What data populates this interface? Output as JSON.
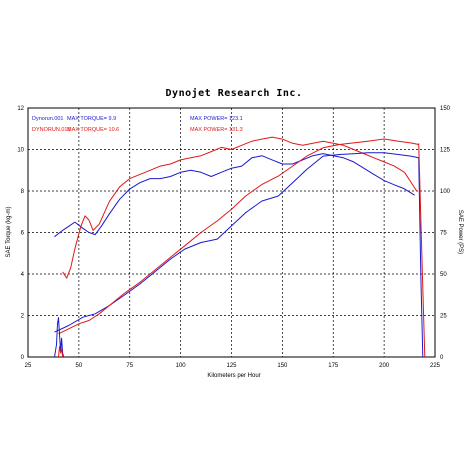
{
  "chart_data": {
    "type": "line",
    "title": "Dynojet  Research  Inc.",
    "xlabel": "Kilometers per Hour",
    "ylabel_left": "SAE Torque (kg-m)",
    "ylabel_right": "SAE Power (PS)",
    "xlim": [
      25,
      225
    ],
    "ylim_left": [
      0,
      12
    ],
    "ylim_right": [
      0,
      150
    ],
    "x_ticks": [
      "25",
      "50",
      "75",
      "100",
      "125",
      "150",
      "175",
      "200",
      "225"
    ],
    "y_left_ticks": [
      "0",
      "2",
      "4",
      "6",
      "8",
      "10",
      "12"
    ],
    "y_right_ticks": [
      "0",
      "25",
      "50",
      "75",
      "100",
      "125",
      "150"
    ],
    "grid": true,
    "legend": [
      {
        "run": "Dynorun.001",
        "torque": "MAX TORQUE= 9.9",
        "power": "MAX POWER= 123.1",
        "color": "#1a1ad0"
      },
      {
        "run": "DYNORUN.015",
        "torque": "MAX TORQUE= 10.6",
        "power": "MAX POWER= 131.3",
        "color": "#e01818"
      }
    ],
    "series": [
      {
        "key": "blue_torque",
        "run": "Dynorun.001",
        "measure": "torque",
        "axis": "left",
        "color": "#1a1ad0",
        "x": [
          38,
          42,
          45,
          48,
          52,
          55,
          58,
          61,
          65,
          70,
          75,
          80,
          85,
          90,
          95,
          100,
          105,
          110,
          115,
          120,
          125,
          130,
          135,
          140,
          145,
          150,
          155,
          160,
          165,
          170,
          175,
          180,
          185,
          190,
          195,
          200,
          205,
          210,
          215
        ],
        "y": [
          5.8,
          6.1,
          6.3,
          6.5,
          6.2,
          6.0,
          5.9,
          6.3,
          6.9,
          7.6,
          8.1,
          8.4,
          8.6,
          8.6,
          8.7,
          8.9,
          9.0,
          8.9,
          8.7,
          8.9,
          9.1,
          9.2,
          9.6,
          9.7,
          9.5,
          9.3,
          9.3,
          9.5,
          9.7,
          9.8,
          9.7,
          9.6,
          9.4,
          9.1,
          8.8,
          8.5,
          8.3,
          8.1,
          7.8
        ]
      },
      {
        "key": "red_torque",
        "run": "DYNORUN.015",
        "measure": "torque",
        "axis": "left",
        "color": "#e01818",
        "x": [
          42,
          44,
          46,
          48,
          51,
          53,
          55,
          57,
          60,
          65,
          70,
          75,
          80,
          85,
          90,
          95,
          100,
          105,
          110,
          115,
          120,
          125,
          130,
          135,
          140,
          145,
          150,
          155,
          160,
          165,
          170,
          175,
          180,
          185,
          190,
          195,
          200,
          205,
          210,
          216
        ],
        "y": [
          4.1,
          3.8,
          4.3,
          5.2,
          6.3,
          6.8,
          6.6,
          6.1,
          6.4,
          7.5,
          8.2,
          8.6,
          8.8,
          9.0,
          9.2,
          9.3,
          9.5,
          9.6,
          9.7,
          9.9,
          10.1,
          10.0,
          10.2,
          10.4,
          10.5,
          10.6,
          10.5,
          10.3,
          10.2,
          10.3,
          10.4,
          10.3,
          10.2,
          10.0,
          9.8,
          9.6,
          9.4,
          9.2,
          8.9,
          8.0
        ]
      },
      {
        "key": "blue_power",
        "run": "Dynorun.001",
        "measure": "power",
        "axis": "right",
        "color": "#1a1ad0",
        "x": [
          38,
          45,
          52,
          58,
          65,
          72,
          80,
          88,
          95,
          102,
          110,
          118,
          125,
          132,
          140,
          148,
          155,
          162,
          170,
          178,
          185,
          192,
          200,
          207,
          213,
          217
        ],
        "y": [
          15,
          19,
          24,
          26,
          31,
          37,
          44,
          52,
          59,
          65,
          69,
          71,
          79,
          87,
          94,
          97,
          105,
          113,
          121,
          122,
          122.5,
          123,
          123.1,
          122,
          121,
          120
        ]
      },
      {
        "key": "red_power",
        "run": "DYNORUN.015",
        "measure": "power",
        "axis": "right",
        "color": "#e01818",
        "x": [
          40,
          45,
          50,
          55,
          60,
          65,
          72,
          80,
          88,
          95,
          102,
          110,
          118,
          125,
          132,
          140,
          148,
          155,
          162,
          170,
          178,
          185,
          192,
          200,
          207,
          213,
          217
        ],
        "y": [
          14,
          17,
          20,
          22,
          26,
          31,
          38,
          45,
          53,
          60,
          67,
          75,
          82,
          89,
          97,
          104,
          109,
          115,
          121,
          126,
          128,
          129,
          130,
          131.3,
          130,
          129,
          128
        ]
      },
      {
        "key": "blue_start",
        "run": "Dynorun.001",
        "measure": "start",
        "axis": "left",
        "color": "#1a1ad0",
        "x": [
          38,
          39,
          39.5,
          40,
          40.5,
          41,
          41.5,
          42,
          42.5
        ],
        "y": [
          0,
          0.6,
          1.6,
          1.9,
          1.1,
          0.3,
          0.9,
          0.2,
          0
        ]
      },
      {
        "key": "red_start",
        "run": "DYNORUN.015",
        "measure": "start",
        "axis": "left",
        "color": "#e01818",
        "x": [
          40,
          40.5,
          41,
          41.5,
          42
        ],
        "y": [
          0,
          0.5,
          0.2,
          0.4,
          0
        ]
      },
      {
        "key": "blue_drop",
        "run": "Dynorun.001",
        "measure": "drop",
        "axis": "left",
        "color": "#1a1ad0",
        "x": [
          217,
          218,
          219
        ],
        "y": [
          9.6,
          4.0,
          0
        ]
      },
      {
        "key": "red_drop",
        "run": "DYNORUN.015",
        "measure": "drop",
        "axis": "left",
        "color": "#e01818",
        "x": [
          217,
          218.5,
          220
        ],
        "y": [
          10.3,
          5.0,
          0
        ]
      }
    ]
  }
}
